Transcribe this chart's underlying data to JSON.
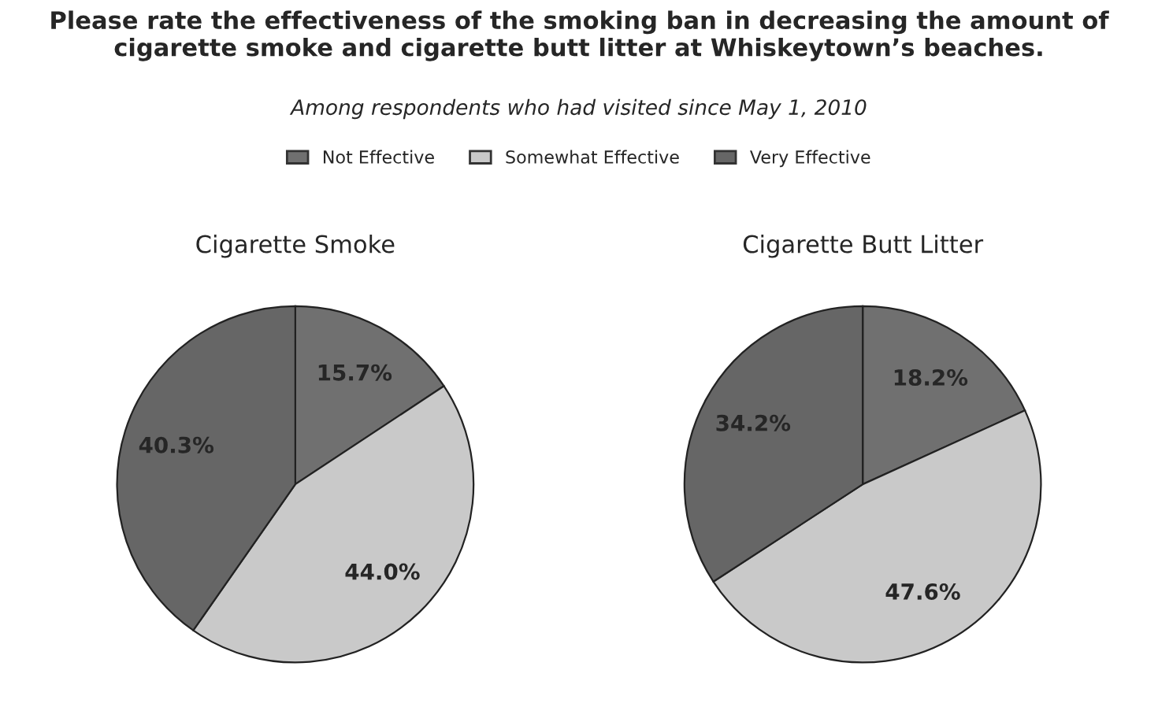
{
  "chart_data": [
    {
      "type": "pie",
      "title": "Cigarette Smoke",
      "annotations": [
        "Please rate the effectiveness of the smoking ban in decreasing the amount of cigarette smoke and cigarette butt litter at Whiskeytown’s beaches.",
        "Among respondents who had visited since May 1, 2010"
      ],
      "legend": "top",
      "categories": [
        "Not Effective",
        "Somewhat Effective",
        "Very Effective"
      ],
      "values": [
        15.7,
        44.0,
        40.3
      ],
      "value_labels": [
        "15.7%",
        "44.0%",
        "40.3%"
      ],
      "colors": [
        "#707070",
        "#c9c9c9",
        "#666666"
      ]
    },
    {
      "type": "pie",
      "title": "Cigarette Butt Litter",
      "categories": [
        null,
        null,
        null
      ],
      "values": [
        18.2,
        47.6,
        34.2
      ],
      "value_labels": [
        "18.2%",
        "47.6%",
        "34.2%"
      ],
      "colors": [
        "#707070",
        "#c9c9c9",
        "#666666"
      ]
    }
  ]
}
